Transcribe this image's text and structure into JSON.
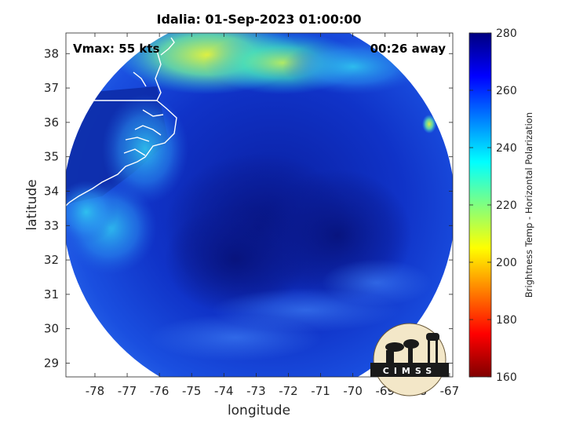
{
  "chart_data": {
    "type": "heatmap",
    "title": "Idalia: 01-Sep-2023 01:00:00",
    "xlabel": "longitude",
    "ylabel": "latitude",
    "xlim": [
      -78.9,
      -66.9
    ],
    "ylim": [
      28.6,
      38.6
    ],
    "xticks": [
      -78,
      -77,
      -76,
      -75,
      -74,
      -73,
      -72,
      -71,
      -70,
      -69,
      -68,
      -67
    ],
    "yticks": [
      29,
      30,
      31,
      32,
      33,
      34,
      35,
      36,
      37,
      38
    ],
    "annotations": {
      "vmax": "Vmax: 55 kts",
      "time_away": "00:26 away"
    },
    "colorbar": {
      "label": "Brightness Temp - Horizontal Polarization",
      "range": [
        160,
        280
      ],
      "ticks": [
        160,
        180,
        200,
        220,
        240,
        260,
        280
      ],
      "colormap": "jet"
    },
    "swath_regions": [
      {
        "lon": -72.9,
        "lat": 33.0,
        "value": 272
      },
      {
        "lon": -71.5,
        "lat": 33.5,
        "value": 270
      },
      {
        "lon": -74.8,
        "lat": 37.8,
        "value": 225
      },
      {
        "lon": -73.4,
        "lat": 37.2,
        "value": 240
      },
      {
        "lon": -77.8,
        "lat": 36.8,
        "value": 245
      },
      {
        "lon": -76.5,
        "lat": 35.0,
        "value": 248
      },
      {
        "lon": -70.0,
        "lat": 37.0,
        "value": 258
      },
      {
        "lon": -73.0,
        "lat": 30.0,
        "value": 255
      },
      {
        "lon": -67.6,
        "lat": 35.9,
        "value": 205
      }
    ],
    "grid": false,
    "legend": "none"
  },
  "logo": {
    "text": "CIMSS"
  }
}
